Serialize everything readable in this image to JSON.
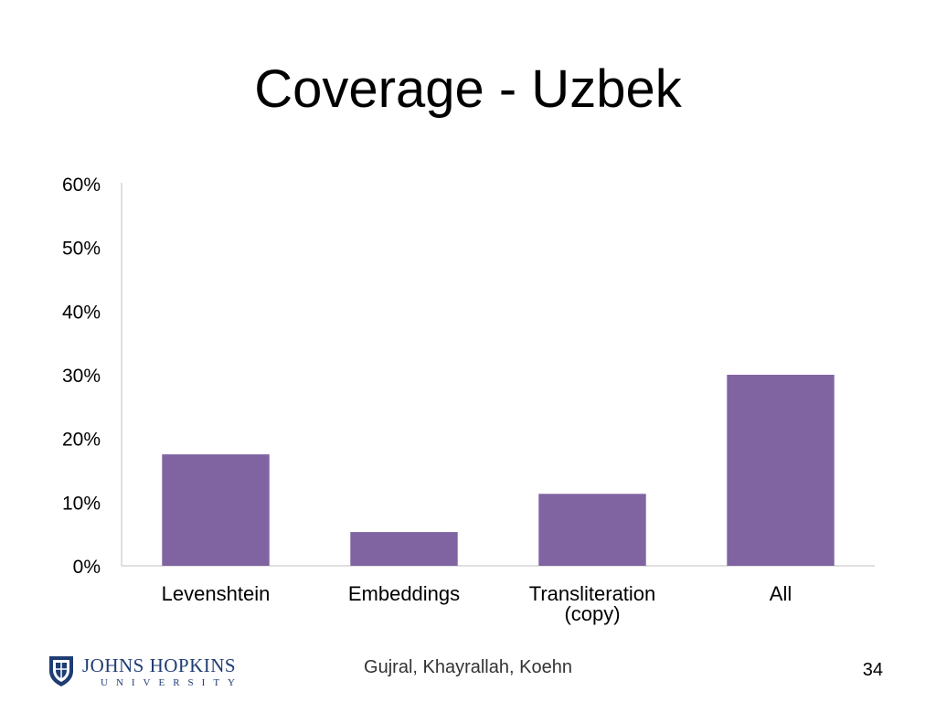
{
  "slide": {
    "title": "Coverage - Uzbek",
    "authors": "Gujral, Khayrallah, Koehn",
    "page_number": "34"
  },
  "logo": {
    "name": "JOHNS HOPKINS",
    "subtitle": "UNIVERSITY",
    "color": "#1f3c73"
  },
  "chart_data": {
    "type": "bar",
    "categories": [
      [
        "Levenshtein"
      ],
      [
        "Embeddings"
      ],
      [
        "Transliteration",
        "(copy)"
      ],
      [
        "All"
      ]
    ],
    "values": [
      0.175,
      0.053,
      0.113,
      0.3
    ],
    "ylim": [
      0,
      0.6
    ],
    "yticks": [
      0,
      0.1,
      0.2,
      0.3,
      0.4,
      0.5,
      0.6
    ],
    "ytick_labels": [
      "0%",
      "10%",
      "20%",
      "30%",
      "40%",
      "50%",
      "60%"
    ],
    "bar_color": "#8064a2",
    "grid": false,
    "legend": "none"
  }
}
